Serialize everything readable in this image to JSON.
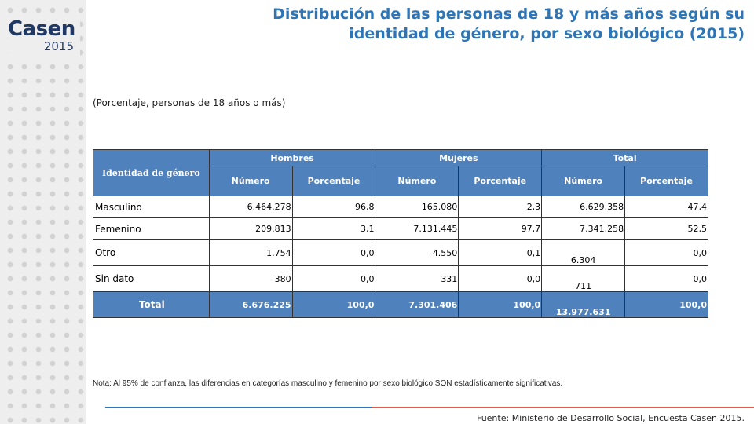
{
  "logo": {
    "word": "Casen",
    "year": "2015"
  },
  "title": "Distribución de las personas de 18 y más años según su identidad de género, por sexo biológico (2015)",
  "subtitle": "(Porcentaje, personas de 18 años o más)",
  "table": {
    "identity_header": "Identidad de género",
    "groups": [
      "Hombres",
      "Mujeres",
      "Total"
    ],
    "subheaders": [
      "Número",
      "Porcentaje",
      "Número",
      "Porcentaje",
      "Número",
      "Porcentaje"
    ],
    "rows": [
      {
        "label": "Masculino",
        "h_num": "6.464.278",
        "h_pct": "96,8",
        "m_num": "165.080",
        "m_pct": "2,3",
        "t_num": "6.629.358",
        "t_pct": "47,4"
      },
      {
        "label": "Femenino",
        "h_num": "209.813",
        "h_pct": "3,1",
        "m_num": "7.131.445",
        "m_pct": "97,7",
        "t_num": "7.341.258",
        "t_pct": "52,5"
      },
      {
        "label": "Otro",
        "h_num": "1.754",
        "h_pct": "0,0",
        "m_num": "4.550",
        "m_pct": "0,1",
        "t_num": "6.304",
        "t_pct": "0,0"
      },
      {
        "label": "Sin dato",
        "h_num": "380",
        "h_pct": "0,0",
        "m_num": "331",
        "m_pct": "0,0",
        "t_num": "711",
        "t_pct": "0,0"
      }
    ],
    "total": {
      "label": "Total",
      "h_num": "6.676.225",
      "h_pct": "100,0",
      "m_num": "7.301.406",
      "m_pct": "100,0",
      "t_num": "13.977.631",
      "t_pct": "100,0"
    }
  },
  "note": "Nota: Al 95% de confianza, las diferencias en categorías masculino y femenino por sexo biológico SON estadísticamente significativas.",
  "source": "Fuente: Ministerio de Desarrollo Social, Encuesta Casen 2015.",
  "colors": {
    "title": "#2e75b6",
    "header_bg": "#4f81bd",
    "logo": "#1f3864",
    "rule_blue": "#2e75b6",
    "rule_red": "#e05a4a"
  }
}
